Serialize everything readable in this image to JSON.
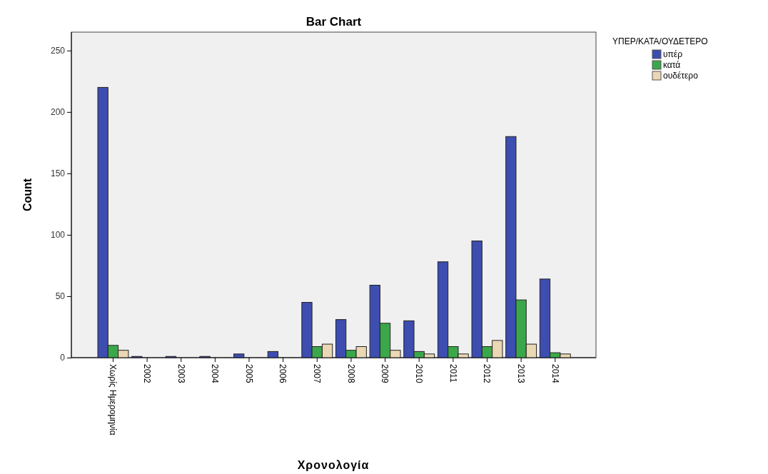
{
  "chart_data": {
    "type": "bar",
    "title": "Bar Chart",
    "xlabel": "Χρονολογία",
    "ylabel": "Count",
    "legend_title": "ΥΠΕΡ/ΚΑΤΑ/ΟΥΔΕΤΕΡΟ",
    "categories": [
      "Χωρίς Ημερομηνία",
      "2002",
      "2003",
      "2004",
      "2005",
      "2006",
      "2007",
      "2008",
      "2009",
      "2010",
      "2011",
      "2012",
      "2013",
      "2014"
    ],
    "series": [
      {
        "name": "υπέρ",
        "color": "#3d4db0",
        "values": [
          220,
          1,
          1,
          1,
          3,
          5,
          45,
          31,
          59,
          30,
          78,
          95,
          180,
          64
        ]
      },
      {
        "name": "κατά",
        "color": "#3aa84a",
        "values": [
          10,
          null,
          null,
          null,
          null,
          null,
          9,
          6,
          28,
          5,
          9,
          9,
          47,
          4
        ]
      },
      {
        "name": "ουδέτερο",
        "color": "#ead7b4",
        "values": [
          6,
          null,
          null,
          null,
          null,
          null,
          11,
          9,
          6,
          3,
          3,
          14,
          11,
          3
        ]
      }
    ],
    "ylim": [
      0,
      265
    ],
    "yticks": [
      0,
      50,
      100,
      150,
      200,
      250
    ],
    "legend": "top right"
  }
}
